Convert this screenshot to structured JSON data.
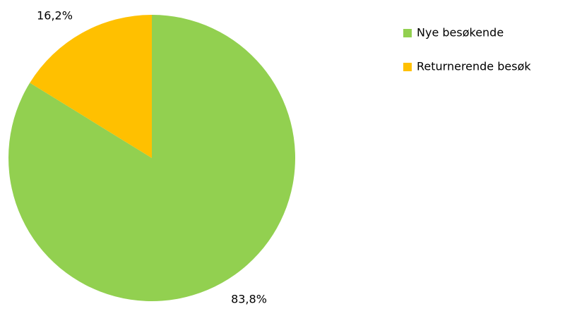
{
  "chart_data": {
    "type": "pie",
    "categories": [
      "Nye besøkende",
      "Returnerende besøk"
    ],
    "values": [
      83.8,
      16.2
    ],
    "value_labels": [
      "83,8%",
      "16,2%"
    ],
    "colors": [
      "#92d050",
      "#ffc000"
    ],
    "legend": "right"
  }
}
